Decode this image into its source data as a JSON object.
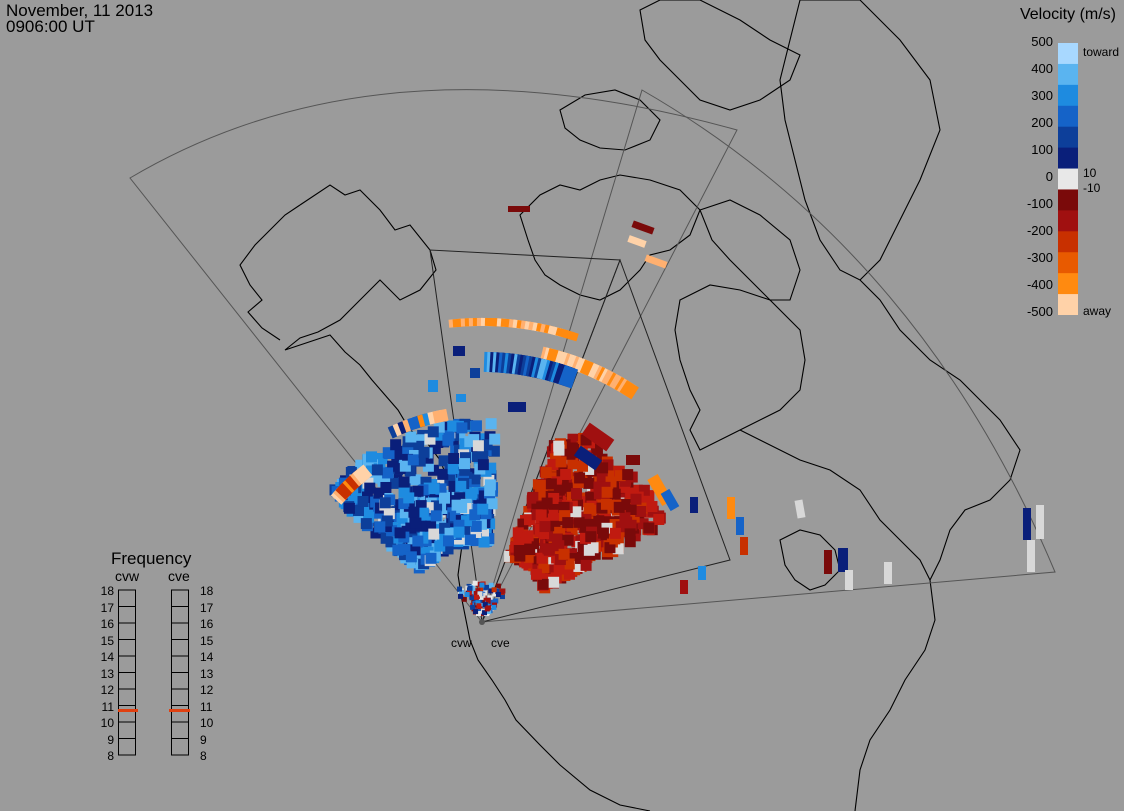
{
  "header": {
    "date": "November, 11 2013",
    "time": "0906:00 UT"
  },
  "colorbar": {
    "title": "Velocity (m/s)",
    "ticks": [
      "500",
      "400",
      "300",
      "200",
      "100",
      "0",
      "-100",
      "-200",
      "-300",
      "-400",
      "-500"
    ],
    "right_labels": {
      "toward": "toward",
      "ten": "10",
      "minus_ten": "-10",
      "away": "away"
    },
    "colors": [
      "#a8d8ff",
      "#5ab4f0",
      "#1e8be0",
      "#1563c8",
      "#0d3f9a",
      "#0a1f7a",
      "#e8e8e8",
      "#7a0a0a",
      "#a01010",
      "#c83000",
      "#e85a00",
      "#ff8a10",
      "#ffd2a8"
    ]
  },
  "frequency": {
    "title": "Frequency",
    "radars": [
      "cvw",
      "cve"
    ],
    "scale": [
      "18",
      "17",
      "16",
      "15",
      "14",
      "13",
      "12",
      "11",
      "10",
      "9",
      "8"
    ],
    "values_mhz": [
      10.7,
      10.7
    ],
    "indicator_color": "#e04010"
  },
  "radars": [
    {
      "name": "cvw"
    },
    {
      "name": "cve"
    }
  ],
  "colors": {
    "background": "#9b9b9b",
    "coast": "#000000",
    "fov": "#555555"
  }
}
